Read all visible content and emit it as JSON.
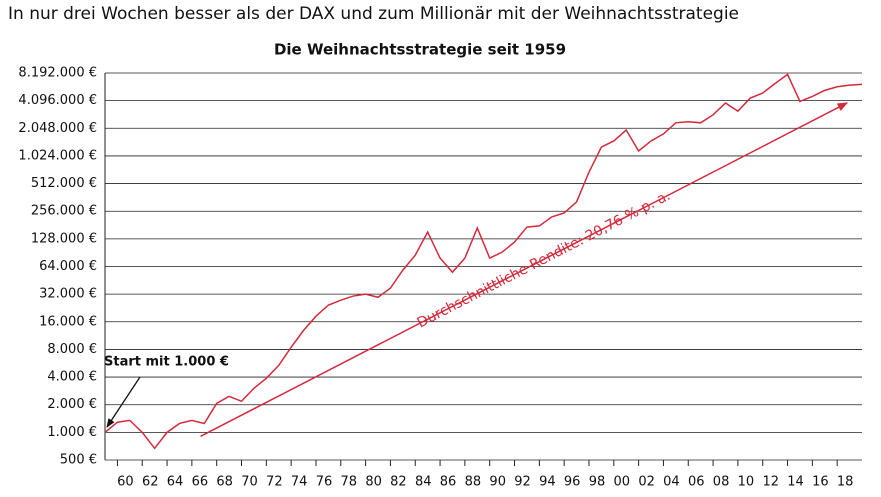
{
  "page_title": "In nur drei Wochen besser als der DAX und zum Millionär mit der Weihnachtsstrategie",
  "chart_data": {
    "type": "line",
    "title": "Die Weihnachtsstrategie seit 1959",
    "log_scale": true,
    "grid": true,
    "color": "#d42a3c",
    "x": [
      1959,
      1960,
      1961,
      1962,
      1963,
      1964,
      1965,
      1966,
      1967,
      1968,
      1969,
      1970,
      1971,
      1972,
      1973,
      1974,
      1975,
      1976,
      1977,
      1978,
      1979,
      1980,
      1981,
      1982,
      1983,
      1984,
      1985,
      1986,
      1987,
      1988,
      1989,
      1990,
      1991,
      1992,
      1993,
      1994,
      1995,
      1996,
      1997,
      1998,
      1999,
      2000,
      2001,
      2002,
      2003,
      2004,
      2005,
      2006,
      2007,
      2008,
      2009,
      2010,
      2011,
      2012,
      2013,
      2014,
      2015,
      2016,
      2017,
      2018,
      2019,
      2020
    ],
    "values": [
      1000,
      1290,
      1350,
      1000,
      670,
      1000,
      1250,
      1350,
      1250,
      2070,
      2470,
      2180,
      3020,
      3880,
      5360,
      8450,
      12900,
      18400,
      24300,
      27500,
      30500,
      32000,
      29600,
      37200,
      58500,
      85000,
      152000,
      79000,
      55500,
      79000,
      168000,
      79000,
      91700,
      118000,
      172000,
      177000,
      222000,
      245000,
      323000,
      682000,
      1280000,
      1490000,
      1960000,
      1160000,
      1490000,
      1780000,
      2350000,
      2410000,
      2350000,
      2870000,
      3860000,
      3150000,
      4370000,
      4960000,
      6300000,
      7900000,
      4020000,
      4550000,
      5300000,
      5800000,
      6050000,
      6150000
    ],
    "trend": {
      "x": [
        1966.7,
        2018.8
      ],
      "values": [
        905,
        3870000
      ]
    },
    "trend_label": "Durchschnittliche Rendite: 20,76 % p. a.",
    "start_label": "Start mit 1.000 €",
    "xlim": [
      1959,
      2020
    ],
    "xticks": [
      {
        "value": 1960,
        "label": "60"
      },
      {
        "value": 1962,
        "label": "62"
      },
      {
        "value": 1964,
        "label": "64"
      },
      {
        "value": 1966,
        "label": "66"
      },
      {
        "value": 1968,
        "label": "68"
      },
      {
        "value": 1970,
        "label": "70"
      },
      {
        "value": 1972,
        "label": "72"
      },
      {
        "value": 1974,
        "label": "74"
      },
      {
        "value": 1976,
        "label": "76"
      },
      {
        "value": 1978,
        "label": "78"
      },
      {
        "value": 1980,
        "label": "80"
      },
      {
        "value": 1982,
        "label": "82"
      },
      {
        "value": 1984,
        "label": "84"
      },
      {
        "value": 1986,
        "label": "86"
      },
      {
        "value": 1988,
        "label": "88"
      },
      {
        "value": 1990,
        "label": "90"
      },
      {
        "value": 1992,
        "label": "92"
      },
      {
        "value": 1994,
        "label": "94"
      },
      {
        "value": 1996,
        "label": "96"
      },
      {
        "value": 1998,
        "label": "98"
      },
      {
        "value": 2000,
        "label": "00"
      },
      {
        "value": 2002,
        "label": "02"
      },
      {
        "value": 2004,
        "label": "04"
      },
      {
        "value": 2006,
        "label": "06"
      },
      {
        "value": 2008,
        "label": "08"
      },
      {
        "value": 2010,
        "label": "10"
      },
      {
        "value": 2012,
        "label": "12"
      },
      {
        "value": 2014,
        "label": "14"
      },
      {
        "value": 2016,
        "label": "16"
      },
      {
        "value": 2018,
        "label": "18"
      }
    ],
    "ylim": [
      500,
      8192000
    ],
    "yticks": [
      {
        "value": 500,
        "label": "500 €"
      },
      {
        "value": 1000,
        "label": "1.000 €"
      },
      {
        "value": 2000,
        "label": "2.000 €"
      },
      {
        "value": 4000,
        "label": "4.000 €"
      },
      {
        "value": 8000,
        "label": "8.000 €"
      },
      {
        "value": 16000,
        "label": "16.000 €"
      },
      {
        "value": 32000,
        "label": "32.000 €"
      },
      {
        "value": 64000,
        "label": "64.000 €"
      },
      {
        "value": 128000,
        "label": "128.000 €"
      },
      {
        "value": 256000,
        "label": "256.000 €"
      },
      {
        "value": 512000,
        "label": "512.000 €"
      },
      {
        "value": 1024000,
        "label": "1.024.000 €"
      },
      {
        "value": 2048000,
        "label": "2.048.000 €"
      },
      {
        "value": 4096000,
        "label": "4.096.000 €"
      },
      {
        "value": 8192000,
        "label": "8.192.000 €"
      }
    ]
  }
}
